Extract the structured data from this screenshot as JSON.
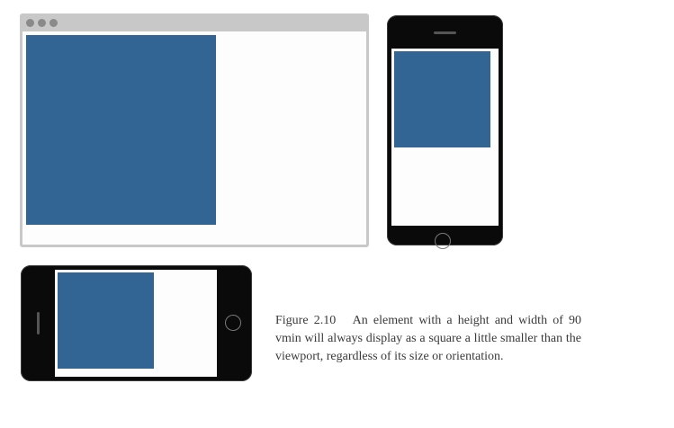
{
  "colors": {
    "square": "#336594",
    "device_frame": "#0a0a0a",
    "browser_chrome": "#c8c8c8",
    "browser_dots": "#8a8a8a",
    "viewport_background": "#fdfdfd"
  },
  "devices": {
    "browser": {
      "window_dots": 3
    },
    "phone_portrait": {},
    "phone_landscape": {}
  },
  "caption": {
    "label": "Figure 2.10",
    "text": "An element with a height and width of 90 vmin will always display as a square a little smaller than the viewport, regardless of its size or orientation."
  }
}
